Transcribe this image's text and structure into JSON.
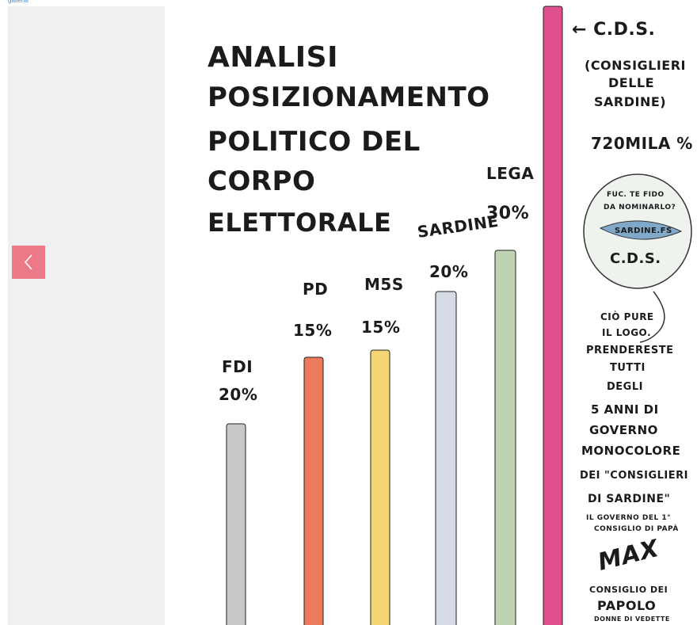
{
  "header": {
    "top_link": "galleria"
  },
  "navigation": {
    "prev_icon": "chevron-left-icon",
    "accent_color": "#eb7a86"
  },
  "cartoon": {
    "title_lines": [
      "ANALISI",
      "POSIZIONAMENTO",
      "POLITICO DEL",
      "CORPO",
      "ELETTORALE"
    ],
    "bars": [
      {
        "party": "FDI",
        "percent": "20%",
        "value": 20,
        "color": "#c9c9c9"
      },
      {
        "party": "PD",
        "percent": "15%",
        "value": 15,
        "color": "#ee7a5d"
      },
      {
        "party": "M5S",
        "percent": "15%",
        "value": 15,
        "color": "#f3d574"
      },
      {
        "party": "SARDINE",
        "percent": "20%",
        "value": 20,
        "color": "#d7dbe6"
      },
      {
        "party": "LEGA",
        "percent": "30%",
        "value": 30,
        "color": "#bfd3b4"
      },
      {
        "party": "C.D.S.",
        "percent": "720MILA%",
        "value": 720000,
        "color": "#e1508e"
      }
    ],
    "cds_note_lines": [
      "(CONSIGLIERI",
      "DELLE",
      "SARDINE)"
    ],
    "cds_label": "← C.D.S.",
    "cds_value": "720MILA %",
    "badge_lines": [
      "FUC. TE FIDO",
      "DA NOMINARLO?",
      "SARDINE.FS",
      "C.D.S."
    ],
    "side_note_lines": [
      "CIÒ PURE",
      "IL LOGO.",
      "PRENDERESTE",
      "TUTTI",
      "DEGLI",
      "5 ANNI DI",
      "GOVERNO",
      "MONOCOLORE",
      "DEI \"CONSIGLIERI",
      "DI SARDINE\""
    ],
    "footnote_lines": [
      "IL GOVERNO DEL 1°",
      "CONSIGLIO DI PAPÀ"
    ],
    "signature": "MAX",
    "signature_sub_lines": [
      "CONSIGLIO DEI",
      "PAPOLO",
      "DONNE DI VEDETTE"
    ]
  }
}
